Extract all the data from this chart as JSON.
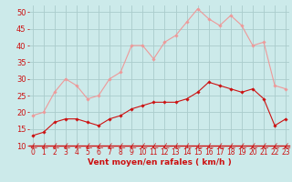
{
  "x": [
    0,
    1,
    2,
    3,
    4,
    5,
    6,
    7,
    8,
    9,
    10,
    11,
    12,
    13,
    14,
    15,
    16,
    17,
    18,
    19,
    20,
    21,
    22,
    23
  ],
  "wind_avg": [
    13,
    14,
    17,
    18,
    18,
    17,
    16,
    18,
    19,
    21,
    22,
    23,
    23,
    23,
    24,
    26,
    29,
    28,
    27,
    26,
    27,
    24,
    16,
    18
  ],
  "wind_gust": [
    19,
    20,
    26,
    30,
    28,
    24,
    25,
    30,
    32,
    40,
    40,
    36,
    41,
    43,
    47,
    51,
    48,
    46,
    49,
    46,
    40,
    41,
    28,
    27
  ],
  "bg_color": "#cceaea",
  "grid_color": "#aacccc",
  "line_avg_color": "#cc1111",
  "line_gust_color": "#ee9999",
  "marker_avg_color": "#cc1111",
  "marker_gust_color": "#ee9999",
  "xlabel": "Vent moyen/en rafales ( km/h )",
  "xlabel_color": "#cc1111",
  "tick_color": "#cc1111",
  "spine_color": "#cc1111",
  "ylim": [
    10,
    52
  ],
  "yticks": [
    10,
    15,
    20,
    25,
    30,
    35,
    40,
    45,
    50
  ],
  "xlim": [
    -0.3,
    23.3
  ],
  "ytick_fontsize": 6,
  "xtick_fontsize": 5.5,
  "xlabel_fontsize": 6.5
}
